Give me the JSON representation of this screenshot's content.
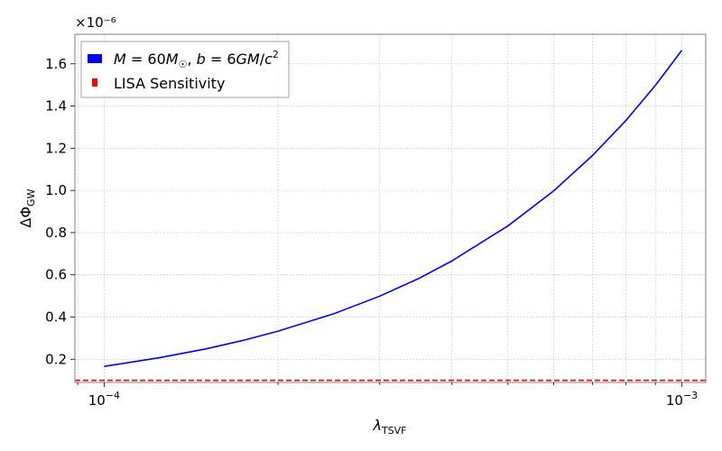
{
  "chart_data": {
    "type": "line",
    "title": "",
    "xscale": "log",
    "xlim": [
      8.9e-05,
      0.0011
    ],
    "ylim": [
      0.09,
      1.74
    ],
    "y_multiplier_label": "×10⁻⁶",
    "xlabel": {
      "main": "λ",
      "sub": "TSVF"
    },
    "ylabel": {
      "main": "ΔΦ",
      "sub": "GW"
    },
    "x_ticks": [
      {
        "value": 0.0001,
        "base": "10",
        "exp": "−4"
      },
      {
        "value": 0.001,
        "base": "10",
        "exp": "−3"
      }
    ],
    "y_ticks": [
      0.2,
      0.4,
      0.6,
      0.8,
      1.0,
      1.2,
      1.4,
      1.6
    ],
    "grid": true,
    "legend_position": "top-left",
    "series": [
      {
        "name": "M = 60M☉, b = 6GM/c²",
        "legend_parts": {
          "a": "M",
          "b": " = 60",
          "c": "M",
          "d": "☉",
          "e": ", ",
          "f": "b",
          "g": " = 6",
          "h": "GM",
          "i": "/",
          "j": "c",
          "k": "2"
        },
        "color": "#0000ff",
        "style": "solid",
        "x": [
          0.0001,
          0.000125,
          0.00015,
          0.000175,
          0.0002,
          0.00025,
          0.0003,
          0.00035,
          0.0004,
          0.0005,
          0.0006,
          0.0007,
          0.0008,
          0.0009,
          0.001
        ],
        "values": [
          0.166,
          0.208,
          0.249,
          0.291,
          0.333,
          0.416,
          0.499,
          0.582,
          0.666,
          0.832,
          0.998,
          1.165,
          1.331,
          1.498,
          1.664
        ]
      },
      {
        "name": "LISA Sensitivity",
        "color": "#ff0000",
        "style": "dashed",
        "x": [
          8.9e-05,
          0.0011
        ],
        "values": [
          0.1,
          0.1
        ]
      }
    ]
  }
}
